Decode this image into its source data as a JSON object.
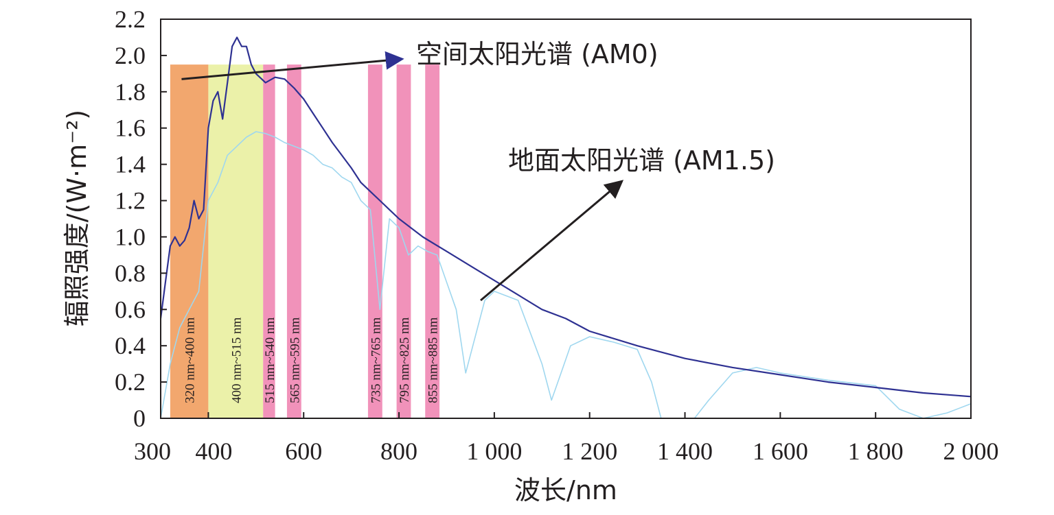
{
  "chart_data": {
    "type": "line",
    "xlabel": "波长/nm",
    "ylabel": "辐照强度/(W·m⁻²)",
    "xlim": [
      300,
      2000
    ],
    "ylim": [
      0,
      2.2
    ],
    "grid": false,
    "x_ticks": [
      {
        "value": 300,
        "label": "300"
      },
      {
        "value": 400,
        "label": "400"
      },
      {
        "value": 600,
        "label": "600"
      },
      {
        "value": 800,
        "label": "800"
      },
      {
        "value": 1000,
        "label": "1 000"
      },
      {
        "value": 1200,
        "label": "1 200"
      },
      {
        "value": 1400,
        "label": "1 400"
      },
      {
        "value": 1600,
        "label": "1 600"
      },
      {
        "value": 1800,
        "label": "1 800"
      },
      {
        "value": 2000,
        "label": "2 000"
      }
    ],
    "y_ticks": [
      {
        "value": 0,
        "label": "0"
      },
      {
        "value": 0.2,
        "label": "0.2"
      },
      {
        "value": 0.4,
        "label": "0.4"
      },
      {
        "value": 0.6,
        "label": "0.6"
      },
      {
        "value": 0.8,
        "label": "0.8"
      },
      {
        "value": 1.0,
        "label": "1.0"
      },
      {
        "value": 1.2,
        "label": "1.2"
      },
      {
        "value": 1.4,
        "label": "1.4"
      },
      {
        "value": 1.6,
        "label": "1.6"
      },
      {
        "value": 1.8,
        "label": "1.8"
      },
      {
        "value": 2.0,
        "label": "2.0"
      },
      {
        "value": 2.2,
        "label": "2.2"
      }
    ],
    "colors": {
      "am0": "#2e3192",
      "am15": "#9fd7ef",
      "band_fill_uv": "#ee8a3d",
      "band_fill_green": "#e7ef9a",
      "band_fill_pink": "#ec6ea3",
      "axis": "#231f20"
    },
    "series": [
      {
        "name": "空间太阳光谱 (AM0)",
        "x": [
          300,
          310,
          320,
          330,
          340,
          350,
          360,
          370,
          380,
          390,
          400,
          410,
          420,
          430,
          440,
          450,
          460,
          470,
          480,
          490,
          500,
          520,
          540,
          560,
          580,
          600,
          620,
          640,
          660,
          680,
          700,
          720,
          740,
          760,
          780,
          800,
          850,
          900,
          950,
          1000,
          1050,
          1100,
          1150,
          1200,
          1300,
          1400,
          1500,
          1600,
          1700,
          1800,
          1900,
          2000
        ],
        "y": [
          0.55,
          0.75,
          0.95,
          1.0,
          0.95,
          0.98,
          1.05,
          1.2,
          1.1,
          1.15,
          1.6,
          1.75,
          1.8,
          1.65,
          1.85,
          2.05,
          2.1,
          2.05,
          2.05,
          1.95,
          1.9,
          1.85,
          1.88,
          1.87,
          1.82,
          1.76,
          1.68,
          1.6,
          1.52,
          1.45,
          1.38,
          1.3,
          1.25,
          1.2,
          1.15,
          1.1,
          1.0,
          0.92,
          0.84,
          0.76,
          0.68,
          0.6,
          0.55,
          0.48,
          0.4,
          0.33,
          0.28,
          0.24,
          0.2,
          0.17,
          0.14,
          0.12
        ]
      },
      {
        "name": "地面太阳光谱 (AM1.5)",
        "x": [
          300,
          320,
          340,
          360,
          380,
          400,
          420,
          440,
          460,
          480,
          500,
          520,
          540,
          560,
          580,
          600,
          620,
          640,
          660,
          680,
          700,
          720,
          740,
          760,
          780,
          800,
          820,
          840,
          860,
          880,
          900,
          920,
          940,
          960,
          980,
          1000,
          1050,
          1100,
          1120,
          1140,
          1160,
          1200,
          1250,
          1300,
          1330,
          1350,
          1370,
          1400,
          1420,
          1450,
          1500,
          1550,
          1600,
          1700,
          1800,
          1850,
          1900,
          1950,
          2000
        ],
        "y": [
          0.0,
          0.3,
          0.5,
          0.6,
          0.7,
          1.2,
          1.3,
          1.45,
          1.5,
          1.55,
          1.58,
          1.57,
          1.55,
          1.52,
          1.5,
          1.48,
          1.45,
          1.4,
          1.38,
          1.33,
          1.3,
          1.2,
          1.15,
          0.6,
          1.1,
          1.05,
          0.9,
          0.95,
          0.92,
          0.9,
          0.75,
          0.6,
          0.25,
          0.45,
          0.65,
          0.7,
          0.65,
          0.3,
          0.1,
          0.25,
          0.4,
          0.45,
          0.42,
          0.38,
          0.2,
          0.0,
          0.0,
          0.0,
          0.0,
          0.1,
          0.25,
          0.28,
          0.25,
          0.21,
          0.18,
          0.05,
          0.0,
          0.03,
          0.08
        ]
      }
    ],
    "bands": [
      {
        "range": [
          320,
          400
        ],
        "label": "320 nm~400 nm"
      },
      {
        "range": [
          400,
          515
        ],
        "label": "400 nm~515 nm"
      },
      {
        "range": [
          515,
          540
        ],
        "label": "515 nm~540 nm"
      },
      {
        "range": [
          565,
          595
        ],
        "label": "565 nm~595 nm"
      },
      {
        "range": [
          735,
          765
        ],
        "label": "735 nm~765 nm"
      },
      {
        "range": [
          795,
          825
        ],
        "label": "795 nm~825 nm"
      },
      {
        "range": [
          855,
          885
        ],
        "label": "855 nm~885 nm"
      }
    ],
    "annotations": [
      {
        "text": "空间太阳光谱 (AM0)",
        "arrow_from": [
          560,
          1.9
        ],
        "text_at": [
          690,
          2.0
        ]
      },
      {
        "text": "地面太阳光谱 (AM1.5)",
        "arrow_from": [
          980,
          0.65
        ],
        "text_at": [
          1180,
          1.3
        ]
      }
    ]
  }
}
